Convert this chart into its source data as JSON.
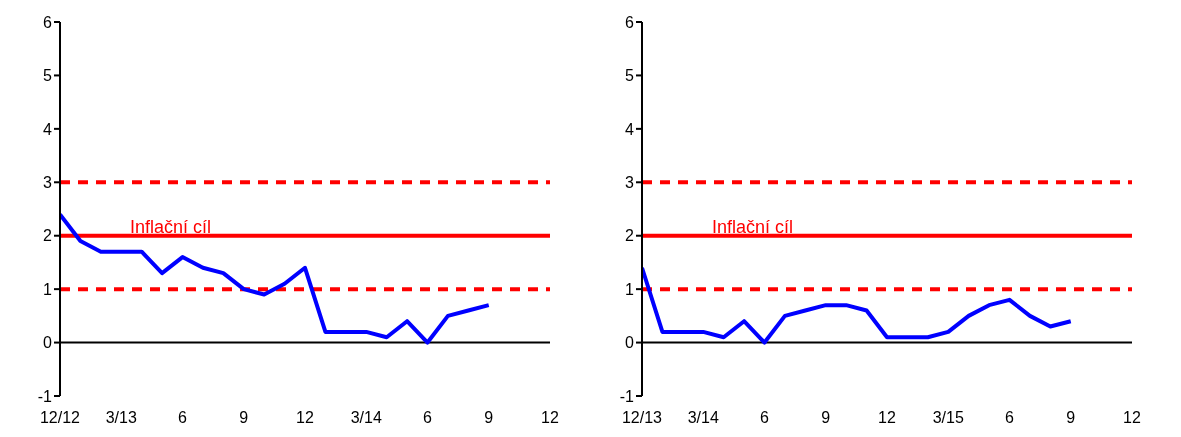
{
  "chart_data": [
    {
      "type": "line",
      "categories": [
        "12/12",
        null,
        null,
        "3/13",
        null,
        null,
        "6",
        null,
        null,
        "9",
        null,
        null,
        "12",
        null,
        null,
        "3/14",
        null,
        null,
        "6",
        null,
        null,
        "9",
        null,
        null,
        "12"
      ],
      "series": [
        {
          "color": "#0000ff",
          "values": [
            2.4,
            1.9,
            1.7,
            1.7,
            1.7,
            1.3,
            1.6,
            1.4,
            1.3,
            1.0,
            0.9,
            1.1,
            1.4,
            0.2,
            0.2,
            0.2,
            0.1,
            0.4,
            0.0,
            0.5,
            0.6,
            0.7,
            null,
            null,
            null
          ]
        }
      ],
      "ylim": [
        -1,
        6
      ],
      "yticks": [
        -1,
        0,
        1,
        2,
        3,
        4,
        5,
        6
      ],
      "grid": false,
      "marker": "none",
      "line_style": "solid",
      "ref_lines": [
        {
          "axis": "y",
          "value": 3,
          "color": "#ff0000",
          "line_style": "dashed"
        },
        {
          "axis": "y",
          "value": 2,
          "color": "#ff0000",
          "line_style": "solid",
          "label": "Inflační cíl"
        },
        {
          "axis": "y",
          "value": 1,
          "color": "#ff0000",
          "line_style": "dashed"
        }
      ]
    },
    {
      "type": "line",
      "categories": [
        "12/13",
        null,
        null,
        "3/14",
        null,
        null,
        "6",
        null,
        null,
        "9",
        null,
        null,
        "12",
        null,
        null,
        "3/15",
        null,
        null,
        "6",
        null,
        null,
        "9",
        null,
        null,
        "12"
      ],
      "series": [
        {
          "color": "#0000ff",
          "values": [
            1.4,
            0.2,
            0.2,
            0.2,
            0.1,
            0.4,
            0.0,
            0.5,
            0.6,
            0.7,
            0.7,
            0.6,
            0.1,
            0.1,
            0.1,
            0.2,
            0.5,
            0.7,
            0.8,
            0.5,
            0.3,
            0.4,
            null,
            null,
            null
          ]
        }
      ],
      "ylim": [
        -1,
        6
      ],
      "yticks": [
        -1,
        0,
        1,
        2,
        3,
        4,
        5,
        6
      ],
      "grid": false,
      "marker": "none",
      "line_style": "solid",
      "ref_lines": [
        {
          "axis": "y",
          "value": 3,
          "color": "#ff0000",
          "line_style": "dashed"
        },
        {
          "axis": "y",
          "value": 2,
          "color": "#ff0000",
          "line_style": "solid",
          "label": "Inflační cíl"
        },
        {
          "axis": "y",
          "value": 1,
          "color": "#ff0000",
          "line_style": "dashed"
        }
      ]
    }
  ]
}
